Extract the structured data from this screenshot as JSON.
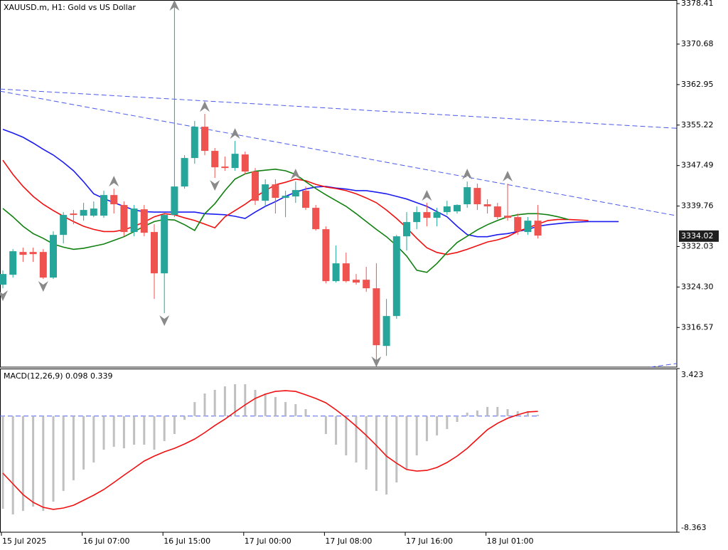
{
  "chart_data": [
    {
      "type": "candlestick",
      "title": "XAUUSD.m, H1:  Gold vs US Dollar",
      "ylim": [
        3309.0,
        3379.1
      ],
      "yticks": [
        3378.41,
        3370.68,
        3362.95,
        3355.22,
        3347.49,
        3339.76,
        3332.03,
        {
          "value": 3324.3,
          "label": "3324.30"
        },
        3316.57
      ],
      "up_color": "#26a69a",
      "down_color": "#ef5350",
      "ohlc": [
        [
          3324.74,
          3327.46,
          3324.06,
          3326.78
        ],
        [
          3326.64,
          3331.54,
          3326.1,
          3331.13
        ],
        [
          3330.99,
          3331.81,
          3329.09,
          3330.45
        ],
        [
          3330.99,
          3331.81,
          3329.09,
          3330.58
        ],
        [
          3330.99,
          3331.54,
          3325.83,
          3326.1
        ],
        [
          3326.1,
          3334.93,
          3325.83,
          3334.25
        ],
        [
          3334.25,
          3338.6,
          3332.62,
          3338.06
        ],
        [
          3338.33,
          3339.01,
          3336.29,
          3338.06
        ],
        [
          3337.92,
          3340.37,
          3336.97,
          3339.01
        ],
        [
          3337.92,
          3340.64,
          3337.65,
          3339.28
        ],
        [
          3337.92,
          3342.68,
          3337.51,
          3341.86
        ],
        [
          3341.86,
          3343.08,
          3338.33,
          3340.1
        ],
        [
          3339.96,
          3340.64,
          3333.98,
          3334.8
        ],
        [
          3334.8,
          3339.96,
          3333.98,
          3339.28
        ],
        [
          3339.14,
          3339.96,
          3333.98,
          3334.66
        ],
        [
          3334.8,
          3336.29,
          3322.02,
          3326.91
        ],
        [
          3326.91,
          3338.6,
          3319.31,
          3338.06
        ],
        [
          3338.06,
          3378.41,
          3337.65,
          3343.49
        ],
        [
          3343.49,
          3349.47,
          3343.08,
          3348.93
        ],
        [
          3348.93,
          3355.99,
          3347.84,
          3354.9
        ],
        [
          3354.9,
          3357.35,
          3349.47,
          3350.29
        ],
        [
          3350.29,
          3350.83,
          3345.12,
          3347.16
        ],
        [
          3347.3,
          3349.2,
          3346.48,
          3347.02
        ],
        [
          3347.02,
          3352.19,
          3346.48,
          3349.74
        ],
        [
          3349.61,
          3350.15,
          3345.8,
          3346.35
        ],
        [
          3346.35,
          3347.02,
          3339.96,
          3340.77
        ],
        [
          3340.77,
          3344.85,
          3339.69,
          3343.9
        ],
        [
          3343.9,
          3344.85,
          3338.33,
          3341.32
        ],
        [
          3341.32,
          3342.68,
          3337.65,
          3341.72
        ],
        [
          3341.59,
          3344.44,
          3340.37,
          3342.81
        ],
        [
          3342.68,
          3343.49,
          3339.01,
          3339.42
        ],
        [
          3339.42,
          3339.96,
          3335.07,
          3335.34
        ],
        [
          3335.34,
          3335.88,
          3325.01,
          3325.42
        ],
        [
          3325.42,
          3332.22,
          3325.15,
          3328.82
        ],
        [
          3328.82,
          3330.86,
          3325.15,
          3325.42
        ],
        [
          3325.69,
          3326.78,
          3324.74,
          3325.15
        ],
        [
          3325.69,
          3328.14,
          3323.38,
          3324.06
        ],
        [
          3324.06,
          3328.82,
          3309.52,
          3313.19
        ],
        [
          3313.05,
          3322.02,
          3311.15,
          3318.76
        ],
        [
          3318.76,
          3334.25,
          3318.22,
          3333.98
        ],
        [
          3333.98,
          3338.6,
          3331.27,
          3336.7
        ],
        [
          3336.7,
          3339.69,
          3335.34,
          3338.6
        ],
        [
          3338.6,
          3340.37,
          3335.88,
          3337.51
        ],
        [
          3337.51,
          3339.42,
          3335.88,
          3338.6
        ],
        [
          3338.6,
          3340.77,
          3338.06,
          3339.69
        ],
        [
          3338.74,
          3340.1,
          3338.33,
          3339.96
        ],
        [
          3340.1,
          3344.44,
          3339.42,
          3343.36
        ],
        [
          3343.22,
          3344.04,
          3339.01,
          3340.1
        ],
        [
          3340.1,
          3341.05,
          3338.33,
          3339.69
        ],
        [
          3339.69,
          3340.37,
          3337.24,
          3337.65
        ],
        [
          3337.92,
          3344.04,
          3336.97,
          3337.51
        ],
        [
          3337.65,
          3338.33,
          3334.25,
          3334.93
        ],
        [
          3334.8,
          3337.65,
          3334.25,
          3336.97
        ],
        [
          3336.97,
          3339.96,
          3333.57,
          3334.12
        ],
        null,
        null,
        null,
        null,
        null,
        null,
        null,
        null
      ],
      "lines": [
        {
          "color": "#1c1cf0",
          "values": [
            3354.4,
            3353.7,
            3352.9,
            3351.8,
            3350.6,
            3349.5,
            3348.1,
            3346.5,
            3344.4,
            3342.1,
            3341.2,
            3340.4,
            3339.7,
            3339.0,
            3338.7,
            3338.6,
            3338.6,
            3338.6,
            3338.6,
            3338.6,
            3338.3,
            3338.2,
            3338.1,
            3337.8,
            3337.4,
            3338.6,
            3339.7,
            3340.6,
            3341.6,
            3342.4,
            3343.0,
            3343.4,
            3343.5,
            3343.2,
            3343.0,
            3342.7,
            3342.7,
            3342.4,
            3342.1,
            3341.6,
            3341.1,
            3340.4,
            3339.7,
            3338.7,
            3337.7,
            3335.9,
            3334.3,
            3333.9,
            3333.9,
            3334.3,
            3334.5,
            3334.9,
            3335.3,
            3335.9,
            3336.2,
            3336.4,
            3336.6,
            3336.7,
            3336.8,
            3336.8,
            3336.8,
            3336.8
          ]
        },
        {
          "color": "#f01010",
          "values": [
            3348.5,
            3345.8,
            3343.5,
            3341.6,
            3340.1,
            3338.9,
            3337.8,
            3336.8,
            3335.9,
            3335.3,
            3334.9,
            3334.9,
            3335.2,
            3335.9,
            3336.7,
            3337.7,
            3338.3,
            3338.1,
            3337.5,
            3337.0,
            3336.3,
            3335.6,
            3337.7,
            3338.9,
            3340.1,
            3341.5,
            3342.7,
            3343.8,
            3344.3,
            3344.9,
            3344.6,
            3343.9,
            3343.4,
            3343.1,
            3342.7,
            3342.1,
            3341.3,
            3340.4,
            3339.0,
            3337.4,
            3335.6,
            3333.6,
            3331.8,
            3330.9,
            3330.5,
            3330.9,
            3331.5,
            3332.2,
            3332.9,
            3333.3,
            3333.9,
            3334.9,
            3335.6,
            3336.3,
            3337.0,
            3337.2,
            3337.2,
            3337.1,
            3337.0,
            null,
            null,
            null
          ]
        },
        {
          "color": "#108010",
          "values": [
            3339.3,
            3337.7,
            3335.9,
            3334.5,
            3333.6,
            3332.5,
            3331.9,
            3331.5,
            3331.7,
            3332.1,
            3332.5,
            3333.2,
            3333.9,
            3334.9,
            3335.9,
            3336.8,
            3337.2,
            3337.1,
            3336.2,
            3335.1,
            3338.3,
            3340.2,
            3342.7,
            3344.9,
            3345.9,
            3346.4,
            3346.6,
            3346.8,
            3346.5,
            3345.8,
            3344.4,
            3343.1,
            3341.9,
            3340.8,
            3339.7,
            3338.3,
            3336.8,
            3335.3,
            3333.9,
            3332.2,
            3330.2,
            3327.5,
            3327.1,
            3328.8,
            3330.9,
            3332.8,
            3334.0,
            3335.2,
            3336.2,
            3337.0,
            3337.7,
            3338.1,
            3338.3,
            3338.3,
            3338.1,
            3337.7,
            3337.2,
            null,
            null,
            null,
            null,
            null
          ]
        }
      ],
      "fractals": {
        "color": "#8a8a8a",
        "up": [
          11,
          17,
          20,
          23,
          29,
          42,
          46,
          50
        ],
        "down": [
          0,
          4,
          16,
          21,
          37
        ]
      },
      "trendlines": [
        {
          "color": "#4a5ae8",
          "x": [
            -0.28,
            66.76
          ],
          "y": [
            3362.1,
            3354.6
          ]
        },
        {
          "color": "#4a5ae8",
          "x": [
            -0.28,
            66.76
          ],
          "y": [
            3361.7,
            3337.9
          ]
        },
        {
          "color": "#4a5ae8",
          "x": [
            64.15,
            66.76
          ],
          "y": [
            3309.0,
            3309.7
          ]
        }
      ],
      "current_price": 3334.02
    },
    {
      "type": "macd",
      "title": "MACD(12,26,9) 0.098 0.339",
      "ylim": [
        -8.363,
        3.423
      ],
      "yticks": [
        3.423,
        -8.363
      ],
      "categories": [
        "15 Jul 2025",
        null,
        null,
        null,
        null,
        null,
        null,
        null,
        "16 Jul 07:00",
        null,
        null,
        null,
        null,
        null,
        null,
        null,
        "16 Jul 15:00",
        null,
        null,
        null,
        null,
        null,
        null,
        null,
        "17 Jul 00:00",
        null,
        null,
        null,
        null,
        null,
        null,
        null,
        "17 Jul 08:00",
        null,
        null,
        null,
        null,
        null,
        null,
        null,
        "17 Jul 16:00",
        null,
        null,
        null,
        null,
        null,
        null,
        null,
        "18 Jul 01:00",
        null,
        null,
        null,
        null,
        null,
        null,
        null,
        null,
        null,
        null,
        null,
        null,
        null
      ],
      "histogram": {
        "color": "#c0c0c0",
        "values": [
          -6.67,
          -7.08,
          -6.83,
          -6.52,
          -6.83,
          -6.16,
          -5.39,
          -4.62,
          -3.85,
          -3.34,
          -2.42,
          -2.21,
          -2.32,
          -2.06,
          -2.06,
          -2.42,
          -1.8,
          -1.29,
          -0.27,
          1.01,
          1.63,
          1.89,
          2.14,
          2.3,
          2.3,
          1.89,
          1.63,
          1.37,
          1.01,
          0.86,
          0.5,
          -0.01,
          -1.29,
          -2.06,
          -2.83,
          -3.34,
          -3.85,
          -5.39,
          -5.65,
          -4.78,
          -3.85,
          -2.83,
          -1.8,
          -1.39,
          -0.93,
          -0.42,
          0.25,
          0.4,
          0.66,
          0.66,
          0.5,
          0.35,
          0.35,
          0.098,
          null,
          null,
          null,
          null,
          null,
          null,
          null,
          null
        ]
      },
      "signal": {
        "color": "#f01010",
        "values": [
          -4.11,
          -4.88,
          -5.65,
          -6.21,
          -6.57,
          -6.72,
          -6.62,
          -6.42,
          -6.06,
          -5.7,
          -5.29,
          -4.78,
          -4.26,
          -3.75,
          -3.24,
          -2.88,
          -2.57,
          -2.32,
          -2.01,
          -1.65,
          -1.19,
          -0.68,
          -0.22,
          0.3,
          0.81,
          1.27,
          1.58,
          1.78,
          1.83,
          1.78,
          1.53,
          1.27,
          0.96,
          0.45,
          -0.11,
          -0.73,
          -1.39,
          -2.11,
          -2.88,
          -3.39,
          -3.85,
          -3.96,
          -3.91,
          -3.7,
          -3.34,
          -2.88,
          -2.32,
          -1.65,
          -0.98,
          -0.52,
          -0.16,
          0.09,
          0.3,
          0.339,
          null,
          null,
          null,
          null,
          null,
          null,
          null,
          null
        ]
      },
      "zero_line_color": "#4a5ae8"
    }
  ]
}
